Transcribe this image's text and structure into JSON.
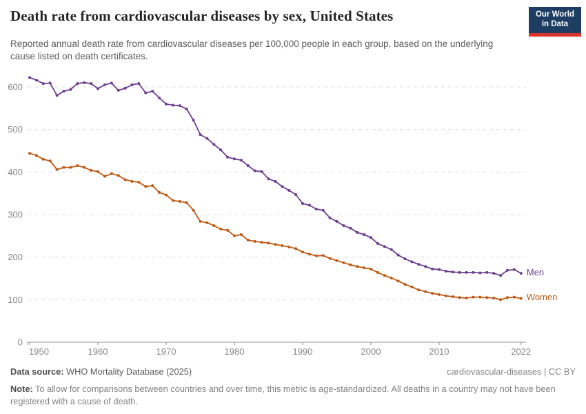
{
  "header": {
    "title": "Death rate from cardiovascular diseases by sex, United States",
    "subtitle": "Reported annual death rate from cardiovascular diseases per 100,000 people in each group, based on the underlying cause listed on death certificates.",
    "logo": {
      "line1": "Our World",
      "line2": "in Data",
      "bg_color": "#1d3d63",
      "bar_color": "#d7352a"
    }
  },
  "chart_data": {
    "type": "line",
    "title": "Death rate from cardiovascular diseases by sex, United States",
    "xlabel": "",
    "ylabel": "",
    "x_start": 1950,
    "x_end": 2022,
    "xticks": [
      1950,
      1960,
      1970,
      1980,
      1990,
      2000,
      2010,
      2022
    ],
    "yticks": [
      0,
      100,
      200,
      300,
      400,
      500,
      600
    ],
    "ylim": [
      0,
      630
    ],
    "grid": true,
    "legend_position": "end-of-line",
    "series": [
      {
        "name": "Men",
        "color": "#6D3E91",
        "values": [
          622,
          616,
          608,
          609,
          580,
          590,
          594,
          608,
          610,
          608,
          596,
          605,
          609,
          592,
          597,
          605,
          608,
          586,
          590,
          574,
          560,
          557,
          556,
          548,
          522,
          488,
          479,
          465,
          452,
          435,
          431,
          428,
          415,
          403,
          401,
          384,
          378,
          366,
          357,
          347,
          326,
          322,
          313,
          310,
          292,
          284,
          274,
          268,
          258,
          253,
          246,
          232,
          225,
          218,
          205,
          196,
          189,
          183,
          178,
          172,
          171,
          167,
          165,
          164,
          164,
          164,
          163,
          164,
          162,
          157,
          169,
          171,
          162
        ]
      },
      {
        "name": "Women",
        "color": "#BE5915",
        "values": [
          444,
          439,
          430,
          426,
          406,
          411,
          411,
          415,
          411,
          404,
          401,
          390,
          396,
          392,
          382,
          378,
          376,
          366,
          368,
          352,
          346,
          333,
          331,
          328,
          310,
          284,
          281,
          274,
          266,
          263,
          250,
          253,
          240,
          237,
          235,
          233,
          230,
          227,
          224,
          220,
          212,
          207,
          203,
          204,
          197,
          192,
          187,
          182,
          178,
          175,
          172,
          164,
          157,
          151,
          144,
          136,
          130,
          123,
          119,
          115,
          112,
          109,
          107,
          105,
          104,
          106,
          106,
          105,
          104,
          100,
          105,
          106,
          103
        ]
      }
    ]
  },
  "footer": {
    "datasource_label": "Data source:",
    "datasource_value": " WHO Mortality Database (2025)",
    "attribution": "cardiovascular-diseases | CC BY",
    "note_label": "Note:",
    "note_value": " To allow for comparisons between countries and over time, this metric is age-standardized. All deaths in a country may not have been registered with a cause of death."
  },
  "colors": {
    "grid": "#dcdcdc",
    "axis": "#8f8f8f",
    "tick_label": "#878787"
  }
}
